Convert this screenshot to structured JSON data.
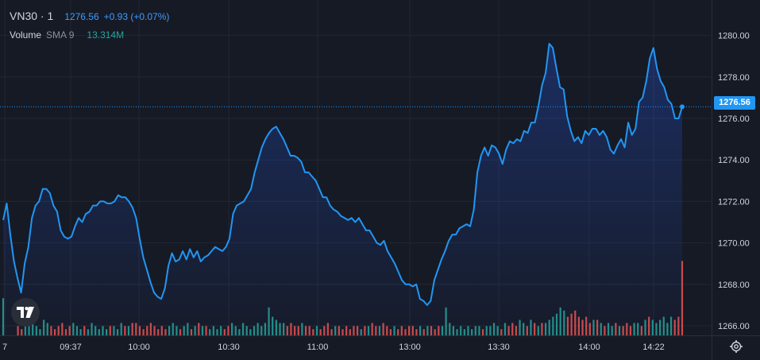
{
  "legend": {
    "symbol": "VN30 · 1",
    "price": "1276.56",
    "change": "+0.93 (+0.07%)",
    "volume_label": "Volume",
    "volume_sma": "SMA 9",
    "volume_value": "13.314M"
  },
  "price_tag": "1276.56",
  "icons": {
    "logo": "tradingview-logo-icon",
    "settings": "gear-icon"
  },
  "colors": {
    "background": "#161a25",
    "line": "#2196f3",
    "volume_up": "#26a69a",
    "volume_down": "#ef5350",
    "grid": "#232734",
    "text": "#d1d4dc"
  },
  "chart_data": [
    {
      "type": "area",
      "title": "VN30",
      "xlabel": "",
      "ylabel": "",
      "x_ticks": [
        "7",
        "09:37",
        "10:00",
        "10:30",
        "11:00",
        "13:00",
        "13:30",
        "14:00",
        "14:22"
      ],
      "y_ticks": [
        "1266.00",
        "1268.00",
        "1270.00",
        "1272.00",
        "1274.00",
        "1276.00",
        "1278.00",
        "1280.00"
      ],
      "ylim": [
        1265.4,
        1281.5
      ],
      "last_price": 1276.56,
      "grid": true,
      "series": [
        {
          "name": "VN30",
          "values": [
            1271.1,
            1271.9,
            1270.4,
            1269.1,
            1268.3,
            1267.6,
            1269.0,
            1269.8,
            1271.2,
            1271.8,
            1272.0,
            1272.6,
            1272.6,
            1272.4,
            1271.8,
            1271.5,
            1270.6,
            1270.3,
            1270.2,
            1270.3,
            1270.8,
            1271.2,
            1271.0,
            1271.4,
            1271.5,
            1271.8,
            1271.8,
            1272.0,
            1272.0,
            1271.9,
            1271.9,
            1272.0,
            1272.3,
            1272.2,
            1272.2,
            1272.0,
            1271.7,
            1271.2,
            1270.2,
            1269.3,
            1268.7,
            1268.1,
            1267.6,
            1267.4,
            1267.3,
            1267.8,
            1268.9,
            1269.5,
            1269.1,
            1269.2,
            1269.6,
            1269.2,
            1269.7,
            1269.3,
            1269.6,
            1269.1,
            1269.3,
            1269.4,
            1269.6,
            1269.8,
            1269.7,
            1269.6,
            1269.8,
            1270.2,
            1271.4,
            1271.8,
            1271.9,
            1272.0,
            1272.3,
            1272.6,
            1273.4,
            1274.0,
            1274.6,
            1275.0,
            1275.3,
            1275.5,
            1275.6,
            1275.3,
            1275.0,
            1274.6,
            1274.2,
            1274.2,
            1274.1,
            1273.9,
            1273.4,
            1273.4,
            1273.2,
            1273.0,
            1272.6,
            1272.2,
            1272.2,
            1271.8,
            1271.6,
            1271.5,
            1271.3,
            1271.2,
            1271.1,
            1271.2,
            1271.0,
            1271.2,
            1270.9,
            1270.6,
            1270.6,
            1270.3,
            1270.0,
            1269.9,
            1270.1,
            1269.6,
            1269.3,
            1269.0,
            1268.6,
            1268.2,
            1268.0,
            1268.0,
            1267.9,
            1268.0,
            1267.3,
            1267.2,
            1267.0,
            1267.2,
            1268.2,
            1268.7,
            1269.2,
            1269.6,
            1270.1,
            1270.4,
            1270.4,
            1270.7,
            1270.8,
            1270.9,
            1270.8,
            1271.6,
            1273.4,
            1274.2,
            1274.6,
            1274.2,
            1274.7,
            1274.6,
            1274.3,
            1273.8,
            1274.5,
            1274.9,
            1274.8,
            1275.0,
            1274.9,
            1275.4,
            1275.3,
            1275.8,
            1275.8,
            1276.6,
            1277.6,
            1278.2,
            1279.6,
            1279.4,
            1278.4,
            1277.5,
            1277.4,
            1276.1,
            1275.4,
            1274.9,
            1275.1,
            1274.8,
            1275.4,
            1275.2,
            1275.5,
            1275.5,
            1275.2,
            1275.4,
            1275.1,
            1274.5,
            1274.3,
            1274.7,
            1275.0,
            1274.6,
            1275.8,
            1275.2,
            1275.5,
            1276.8,
            1277.0,
            1277.8,
            1278.9,
            1279.4,
            1278.4,
            1277.8,
            1277.5,
            1276.9,
            1276.7,
            1276.0,
            1276.0,
            1276.56
          ]
        }
      ]
    },
    {
      "type": "bar",
      "title": "Volume",
      "series": [
        {
          "name": "Volume",
          "values": [
            12,
            0,
            0,
            0,
            3,
            2,
            5,
            3,
            4,
            3,
            2,
            5,
            4,
            3,
            2,
            3,
            4,
            2,
            3,
            4,
            3,
            2,
            3,
            2,
            4,
            3,
            2,
            3,
            2,
            3,
            3,
            2,
            4,
            3,
            3,
            4,
            4,
            3,
            2,
            3,
            4,
            3,
            2,
            3,
            2,
            3,
            4,
            3,
            2,
            3,
            4,
            2,
            3,
            4,
            3,
            3,
            2,
            3,
            2,
            3,
            2,
            3,
            4,
            3,
            2,
            4,
            3,
            2,
            3,
            4,
            3,
            4,
            9,
            6,
            5,
            4,
            4,
            3,
            4,
            3,
            3,
            4,
            3,
            3,
            2,
            3,
            2,
            3,
            4,
            2,
            3,
            3,
            2,
            3,
            2,
            3,
            3,
            2,
            3,
            3,
            4,
            3,
            3,
            4,
            3,
            2,
            3,
            2,
            3,
            2,
            3,
            3,
            2,
            3,
            2,
            3,
            3,
            2,
            3,
            3,
            9,
            4,
            3,
            2,
            3,
            2,
            3,
            2,
            3,
            3,
            2,
            3,
            3,
            4,
            3,
            2,
            4,
            3,
            4,
            3,
            5,
            4,
            3,
            5,
            4,
            3,
            4,
            4,
            5,
            6,
            7,
            9,
            8,
            6,
            7,
            8,
            6,
            5,
            6,
            4,
            5,
            5,
            4,
            3,
            4,
            3,
            4,
            3,
            3,
            4,
            3,
            4,
            4,
            3,
            5,
            6,
            5,
            4,
            5,
            6,
            4,
            6,
            5,
            6,
            24
          ]
        }
      ]
    }
  ]
}
